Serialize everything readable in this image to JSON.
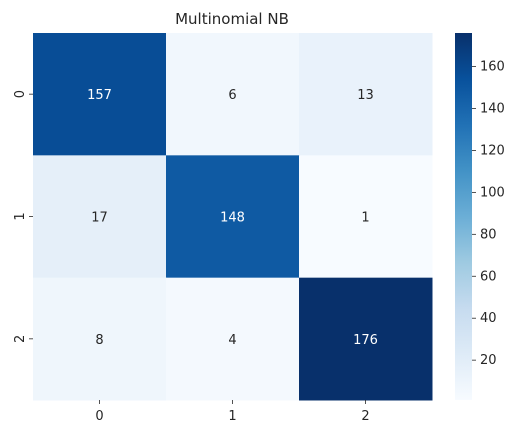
{
  "chart_data": {
    "type": "heatmap",
    "title": "Multinomial NB",
    "row_labels": [
      "0",
      "1",
      "2"
    ],
    "col_labels": [
      "0",
      "1",
      "2"
    ],
    "values": [
      [
        157,
        6,
        13
      ],
      [
        17,
        148,
        1
      ],
      [
        8,
        4,
        176
      ]
    ],
    "colormap": "Blues",
    "vmin": 1,
    "vmax": 176,
    "colorbar_ticks": [
      20,
      40,
      60,
      80,
      100,
      120,
      140,
      160
    ],
    "xlabel": "",
    "ylabel": ""
  }
}
